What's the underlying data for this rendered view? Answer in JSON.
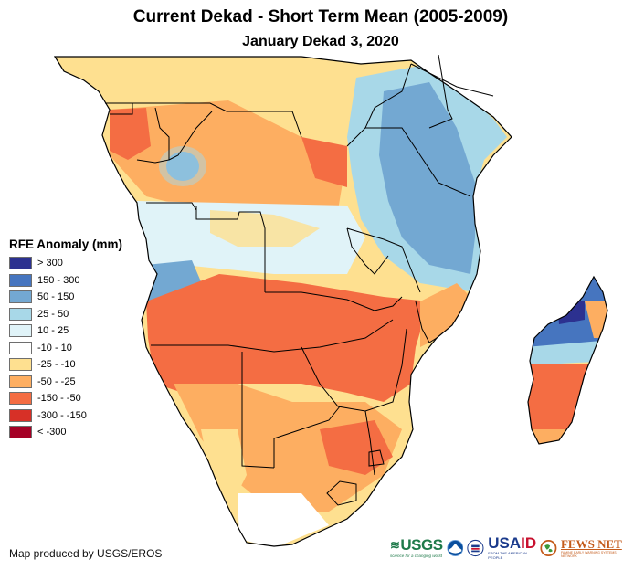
{
  "title": "Current Dekad - Short Term Mean (2005-2009)",
  "subtitle": "January Dekad 3, 2020",
  "legend": {
    "title": "RFE Anomaly (mm)",
    "items": [
      {
        "label": "> 300",
        "color": "#2c3190"
      },
      {
        "label": "150 - 300",
        "color": "#4675bf"
      },
      {
        "label": "50 - 150",
        "color": "#73a8d2"
      },
      {
        "label": "25 - 50",
        "color": "#a8d8e8"
      },
      {
        "label": "10 - 25",
        "color": "#e0f3f8"
      },
      {
        "label": "-10 - 10",
        "color": "#ffffff"
      },
      {
        "label": "-25 - -10",
        "color": "#fee090"
      },
      {
        "label": "-50 - -25",
        "color": "#fdae61"
      },
      {
        "label": "-150 - -50",
        "color": "#f46d43"
      },
      {
        "label": "-300 - -150",
        "color": "#d73027"
      },
      {
        "label": "< -300",
        "color": "#a50026"
      }
    ]
  },
  "region": "Central, East and Southern Africa with Madagascar",
  "credit": "Map produced by USGS/EROS",
  "logos": {
    "usgs": {
      "name": "USGS",
      "tagline": "science for a changing world"
    },
    "noaa": {
      "name": "NOAA"
    },
    "usaid_seal": {
      "name": "USAID seal"
    },
    "usaid": {
      "name_blue": "USA",
      "name_red": "ID",
      "tagline": "FROM THE AMERICAN PEOPLE"
    },
    "fewsnet": {
      "name": "FEWS NET",
      "tagline": "FAMINE EARLY WARNING SYSTEMS NETWORK"
    }
  }
}
